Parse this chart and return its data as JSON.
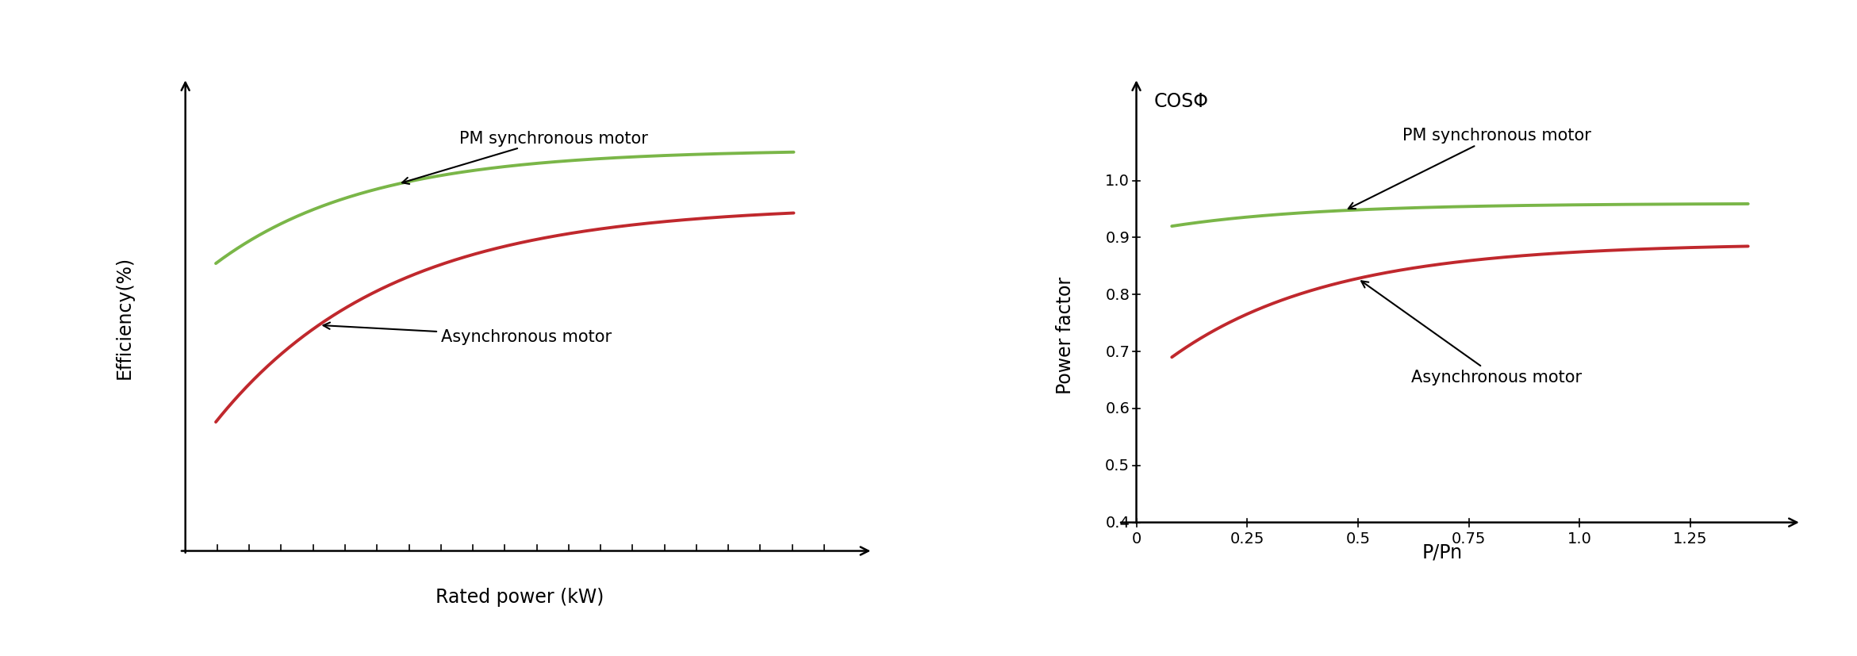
{
  "left_chart": {
    "xlabel": "Rated power (kW)",
    "ylabel": "Efficiency(%)",
    "pm_label": "PM synchronous motor",
    "async_label": "Asynchronous motor",
    "pm_color": "#7ab648",
    "async_color": "#c0282d",
    "tick_count": 20
  },
  "right_chart": {
    "xlabel": "P/Pn",
    "ylabel": "Power factor",
    "ylabel2": "COSΦ",
    "pm_label": "PM synchronous motor",
    "async_label": "Asynchronous motor",
    "pm_color": "#7ab648",
    "async_color": "#c0282d",
    "xticks": [
      0,
      0.25,
      0.5,
      0.75,
      1.0,
      1.25
    ],
    "xtick_labels": [
      "0",
      "0.25",
      "0.5",
      "0.75",
      "1.0",
      "1.25"
    ],
    "yticks": [
      0.4,
      0.5,
      0.6,
      0.7,
      0.8,
      0.9,
      1.0
    ],
    "ytick_labels": [
      "0.4",
      "0.5",
      "0.6",
      "0.7",
      "0.8",
      "0.9",
      "1.0"
    ]
  },
  "bg_color": "#ffffff",
  "line_width": 2.8,
  "font_size": 15,
  "label_font_size": 17,
  "tick_font_size": 14
}
